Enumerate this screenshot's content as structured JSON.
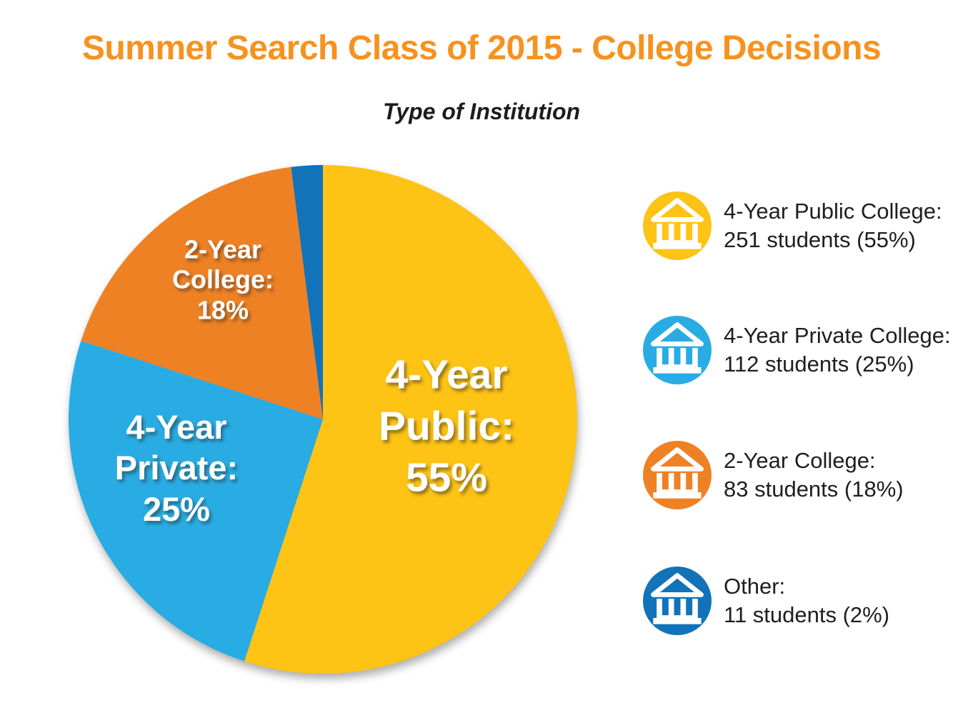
{
  "title": "Summer Search Class of 2015 - College Decisions",
  "subtitle": "Type of Institution",
  "colors": {
    "title": "#F6921E",
    "yellow": "#FDC315",
    "light_blue": "#29ACE3",
    "orange": "#EF8125",
    "dark_blue": "#1273B9",
    "text": "#1E1E1E",
    "label_text": "#FFFFFF"
  },
  "chart_data": {
    "type": "pie",
    "title": "Type of Institution",
    "categories": [
      "4-Year Public College",
      "4-Year Private College",
      "2-Year College",
      "Other"
    ],
    "values": [
      55,
      25,
      18,
      2
    ],
    "students": [
      251,
      112,
      83,
      11
    ],
    "colors": [
      "#FDC315",
      "#29ACE3",
      "#EF8125",
      "#1273B9"
    ],
    "start_angle_deg": 0,
    "direction": "clockwise",
    "slice_labels": [
      "4-Year\nPublic:\n55%",
      "4-Year\nPrivate:\n25%",
      "2-Year\nCollege:\n18%",
      ""
    ],
    "legend_position": "right"
  },
  "legend": {
    "items": [
      {
        "icon": "college-building-icon",
        "color": "#FDC315",
        "line1": "4-Year Public College:",
        "line2": "251 students (55%)"
      },
      {
        "icon": "college-building-icon",
        "color": "#29ACE3",
        "line1": "4-Year Private College:",
        "line2": "112 students (25%)"
      },
      {
        "icon": "college-building-icon",
        "color": "#EF8125",
        "line1": "2-Year College:",
        "line2": "83 students (18%)"
      },
      {
        "icon": "college-building-icon",
        "color": "#1273B9",
        "line1": "Other:",
        "line2": "11 students (2%)"
      }
    ]
  }
}
